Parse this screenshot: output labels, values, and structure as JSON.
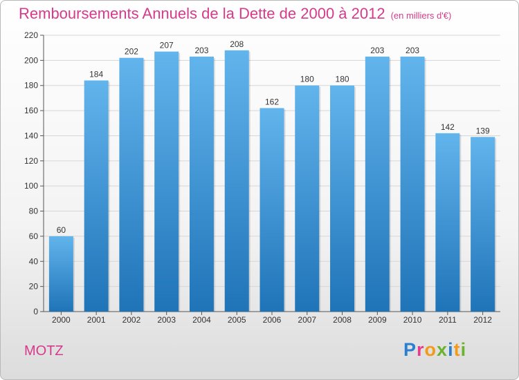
{
  "header": {
    "title": "Remboursements Annuels de la Dette de 2000 à 2012",
    "unit": "(en milliers d'€)"
  },
  "footer": {
    "commune": "MOTZ",
    "logo_letters": [
      "P",
      "r",
      "o",
      "x",
      "i",
      "t",
      "i"
    ],
    "logo_colors": [
      "#2a7fd0",
      "#e83b8b",
      "#f39a1a",
      "#6ab42d",
      "#2a7fd0",
      "#f39a1a",
      "#6ab42d"
    ]
  },
  "colors": {
    "bar_light": "#62b4ec",
    "bar_dark": "#1f74b8",
    "title": "#d63a8a",
    "grid": "#d6d6d6"
  },
  "chart_data": {
    "type": "bar",
    "categories": [
      "2000",
      "2001",
      "2002",
      "2003",
      "2004",
      "2005",
      "2006",
      "2007",
      "2008",
      "2009",
      "2010",
      "2011",
      "2012"
    ],
    "values": [
      60,
      184,
      202,
      207,
      203,
      208,
      162,
      180,
      180,
      203,
      203,
      142,
      139
    ],
    "ylim": [
      0,
      220
    ],
    "yticks": [
      0,
      20,
      40,
      60,
      80,
      100,
      120,
      140,
      160,
      180,
      200,
      220
    ],
    "grid": true
  }
}
